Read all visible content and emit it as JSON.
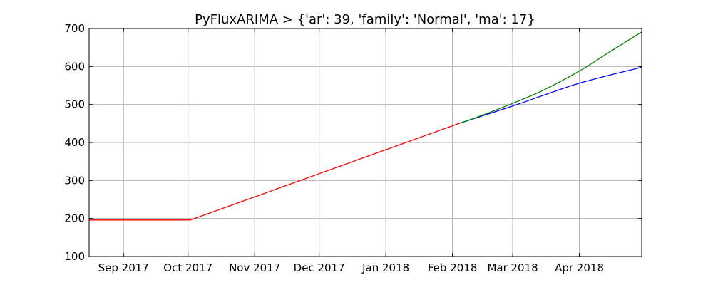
{
  "chart_data": {
    "type": "line",
    "title": "PyFluxARIMA > {'ar': 39, 'family': 'Normal', 'ma': 17}",
    "xlabel": "",
    "ylabel": "",
    "x_range": [
      "2017-08-16",
      "2018-04-30"
    ],
    "ylim": [
      100,
      700
    ],
    "y_ticks": [
      100,
      200,
      300,
      400,
      500,
      600,
      700
    ],
    "x_ticks": [
      {
        "date": "2017-09-01",
        "label": "Sep 2017"
      },
      {
        "date": "2017-10-01",
        "label": "Oct 2017"
      },
      {
        "date": "2017-11-01",
        "label": "Nov 2017"
      },
      {
        "date": "2017-12-01",
        "label": "Dec 2017"
      },
      {
        "date": "2018-01-01",
        "label": "Jan 2018"
      },
      {
        "date": "2018-02-01",
        "label": "Feb 2018"
      },
      {
        "date": "2018-03-01",
        "label": "Mar 2018"
      },
      {
        "date": "2018-04-01",
        "label": "Apr 2018"
      }
    ],
    "grid": true,
    "series": [
      {
        "color": "#ff0000",
        "points": [
          {
            "x": "2017-08-16",
            "y": 196
          },
          {
            "x": "2017-10-02",
            "y": 196
          },
          {
            "x": "2018-02-05",
            "y": 452
          }
        ]
      },
      {
        "color": "#0000ff",
        "points": [
          {
            "x": "2018-02-05",
            "y": 452
          },
          {
            "x": "2018-03-01",
            "y": 496
          },
          {
            "x": "2018-04-01",
            "y": 556
          },
          {
            "x": "2018-04-30",
            "y": 598
          }
        ]
      },
      {
        "color": "#008000",
        "points": [
          {
            "x": "2018-02-05",
            "y": 452
          },
          {
            "x": "2018-02-15",
            "y": 472
          },
          {
            "x": "2018-03-01",
            "y": 503
          },
          {
            "x": "2018-03-15",
            "y": 537
          },
          {
            "x": "2018-04-01",
            "y": 588
          },
          {
            "x": "2018-04-15",
            "y": 638
          },
          {
            "x": "2018-04-30",
            "y": 691
          }
        ]
      }
    ]
  }
}
